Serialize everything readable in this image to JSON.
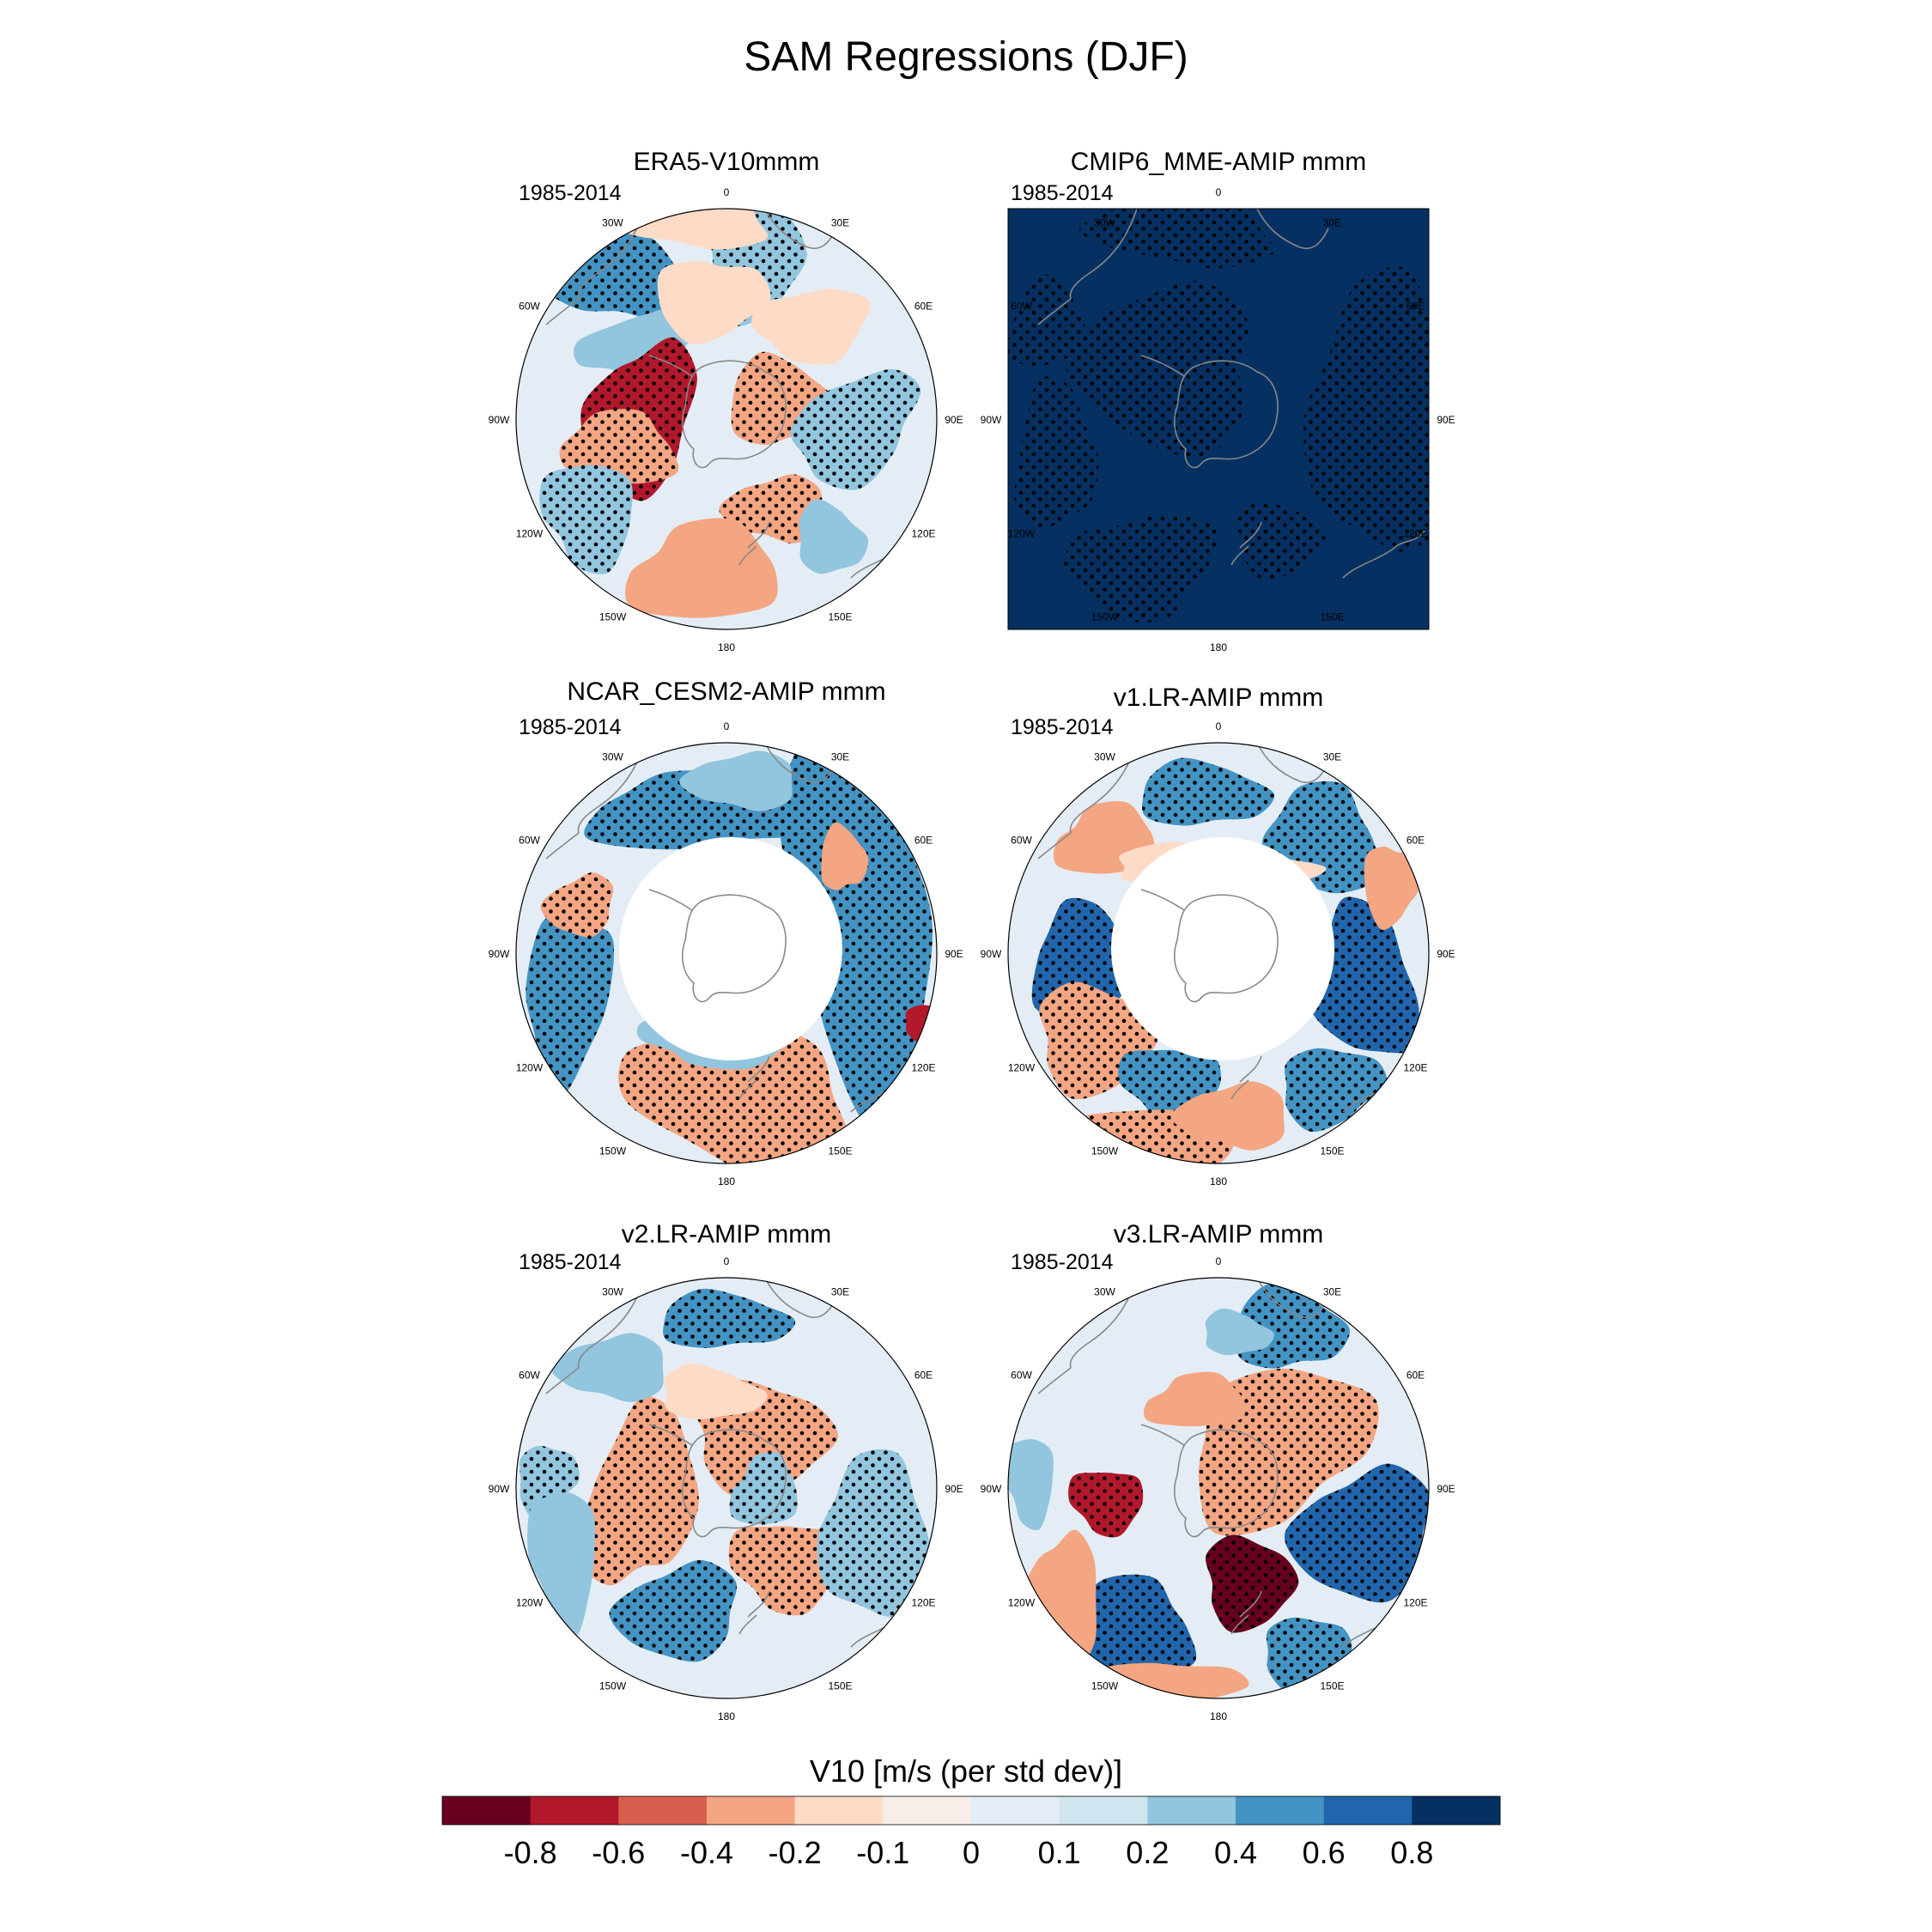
{
  "title": "SAM Regressions (DJF)",
  "colors": {
    "scale": [
      "#67001f",
      "#b2182b",
      "#d6604d",
      "#f4a582",
      "#fddbc7",
      "#f7eeea",
      "#e4edf5",
      "#d1e5f0",
      "#92c5de",
      "#4393c3",
      "#2166ac",
      "#053061",
      "#0b2f5e"
    ],
    "land": "#ffffff",
    "coast": "#888888",
    "stipple": "#000000"
  },
  "panels": [
    {
      "title": "ERA5-V10mmm",
      "period": "1985-2014",
      "style": "era5"
    },
    {
      "title": "CMIP6_MME-AMIP  mmm",
      "period": "1985-2014",
      "style": "mme"
    },
    {
      "title": "NCAR_CESM2-AMIP  mmm",
      "period": "1985-2014",
      "style": "cesm2"
    },
    {
      "title": "v1.LR-AMIP  mmm",
      "period": "1985-2014",
      "style": "v1"
    },
    {
      "title": "v2.LR-AMIP  mmm",
      "period": "1985-2014",
      "style": "v2"
    },
    {
      "title": "v3.LR-AMIP  mmm",
      "period": "1985-2014",
      "style": "v3"
    }
  ],
  "lon_labels": [
    "0",
    "30E",
    "60E",
    "90E",
    "120E",
    "150E",
    "180",
    "150W",
    "120W",
    "90W",
    "60W",
    "30W"
  ],
  "colorbar": {
    "title": "V10 [m/s (per std dev)]",
    "ticks": [
      "-0.8",
      "-0.6",
      "-0.4",
      "-0.2",
      "-0.1",
      "0",
      "0.1",
      "0.2",
      "0.4",
      "0.6",
      "0.8"
    ]
  }
}
